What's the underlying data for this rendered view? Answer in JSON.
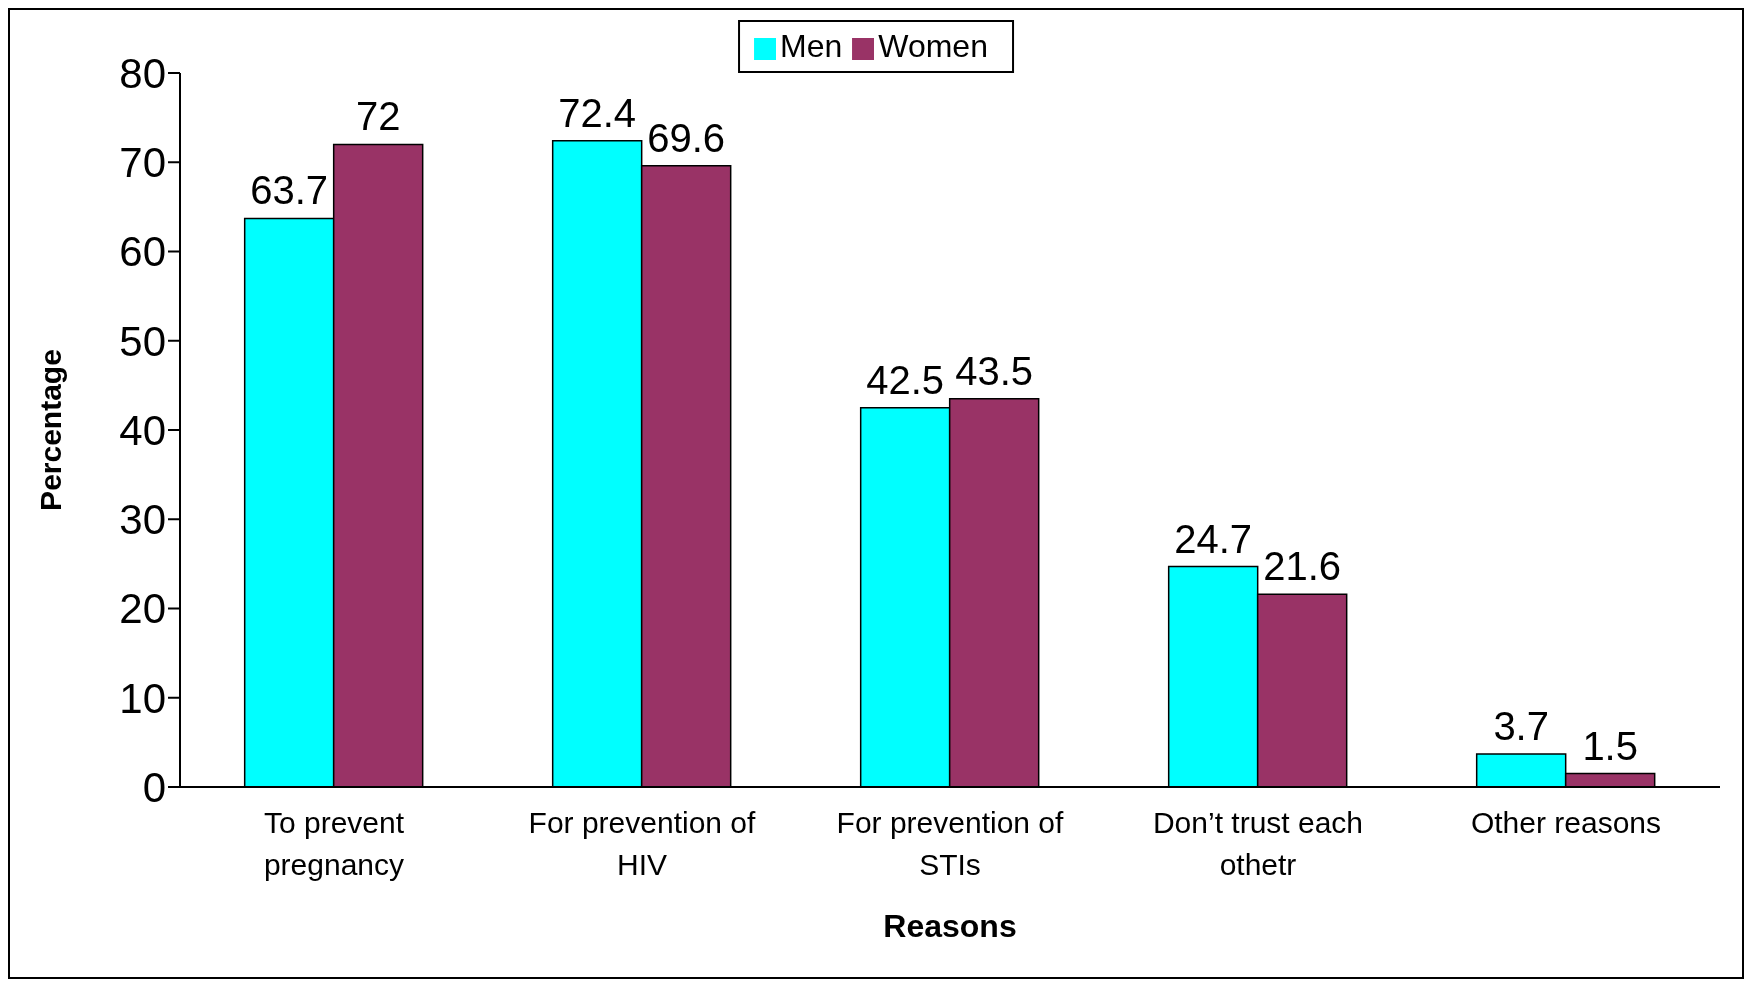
{
  "chart_data": {
    "type": "bar",
    "xlabel": "Reasons",
    "ylabel": "Percentage",
    "categories": [
      "To prevent pregnancy",
      "For prevention of HIV",
      "For prevention of STIs",
      "Don’t trust each othetr",
      "Other reasons"
    ],
    "series": [
      {
        "name": "Men",
        "color": "#00ffff",
        "values": [
          63.7,
          72.4,
          42.5,
          24.7,
          3.7
        ]
      },
      {
        "name": "Women",
        "color": "#993366",
        "values": [
          72,
          69.6,
          43.5,
          21.6,
          1.5
        ]
      }
    ],
    "ylim": [
      0,
      80
    ],
    "yticks": [
      0,
      10,
      20,
      30,
      40,
      50,
      60,
      70,
      80
    ],
    "grid": false,
    "legend": "top",
    "data_labels": true
  }
}
